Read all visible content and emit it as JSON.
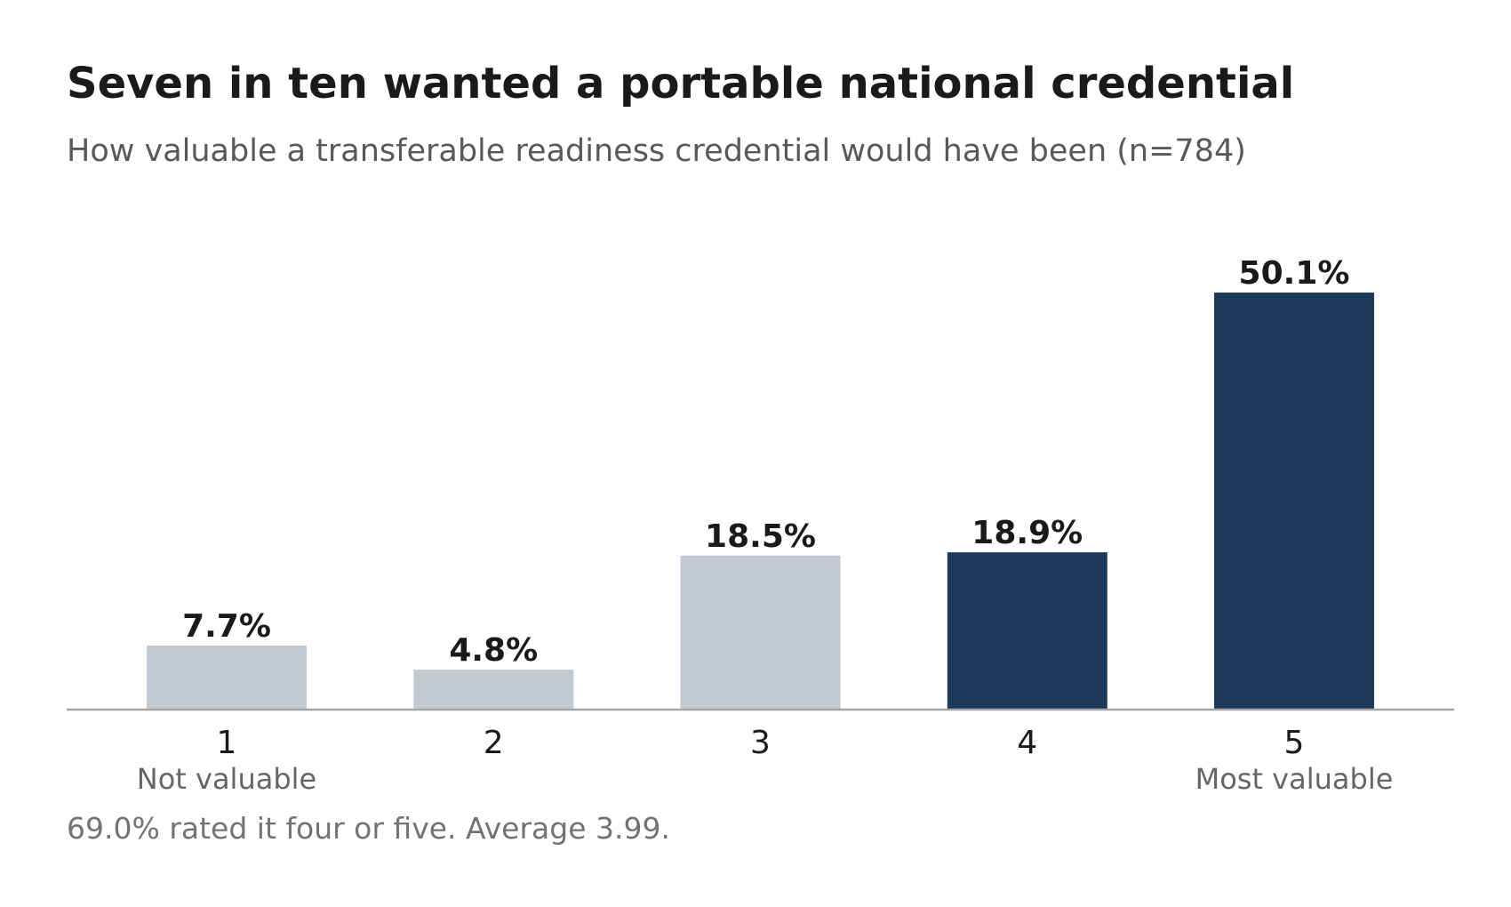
{
  "header": {
    "title": "Seven in ten wanted a portable national credential",
    "subtitle": "How valuable a transferable readiness credential would have been (n=784)"
  },
  "footnote": "69.0% rated it four or five. Average 3.99.",
  "colors": {
    "highlight": "#1d3a5c",
    "muted": "#c3c9d1",
    "axis": "#a6a6a6"
  },
  "chart_data": {
    "type": "bar",
    "title": "Seven in ten wanted a portable national credential",
    "subtitle": "How valuable a transferable readiness credential would have been (n=784)",
    "categories": [
      "1",
      "2",
      "3",
      "4",
      "5"
    ],
    "values": [
      7.7,
      4.8,
      18.5,
      18.9,
      50.1
    ],
    "value_labels": [
      "7.7%",
      "4.8%",
      "18.5%",
      "18.9%",
      "50.1%"
    ],
    "highlighted": [
      false,
      false,
      false,
      true,
      true
    ],
    "end_labels": {
      "low": "Not valuable",
      "high": "Most valuable"
    },
    "xlabel": "",
    "ylabel": "",
    "ylim": [
      0,
      55
    ],
    "grid": false,
    "legend": "none"
  }
}
